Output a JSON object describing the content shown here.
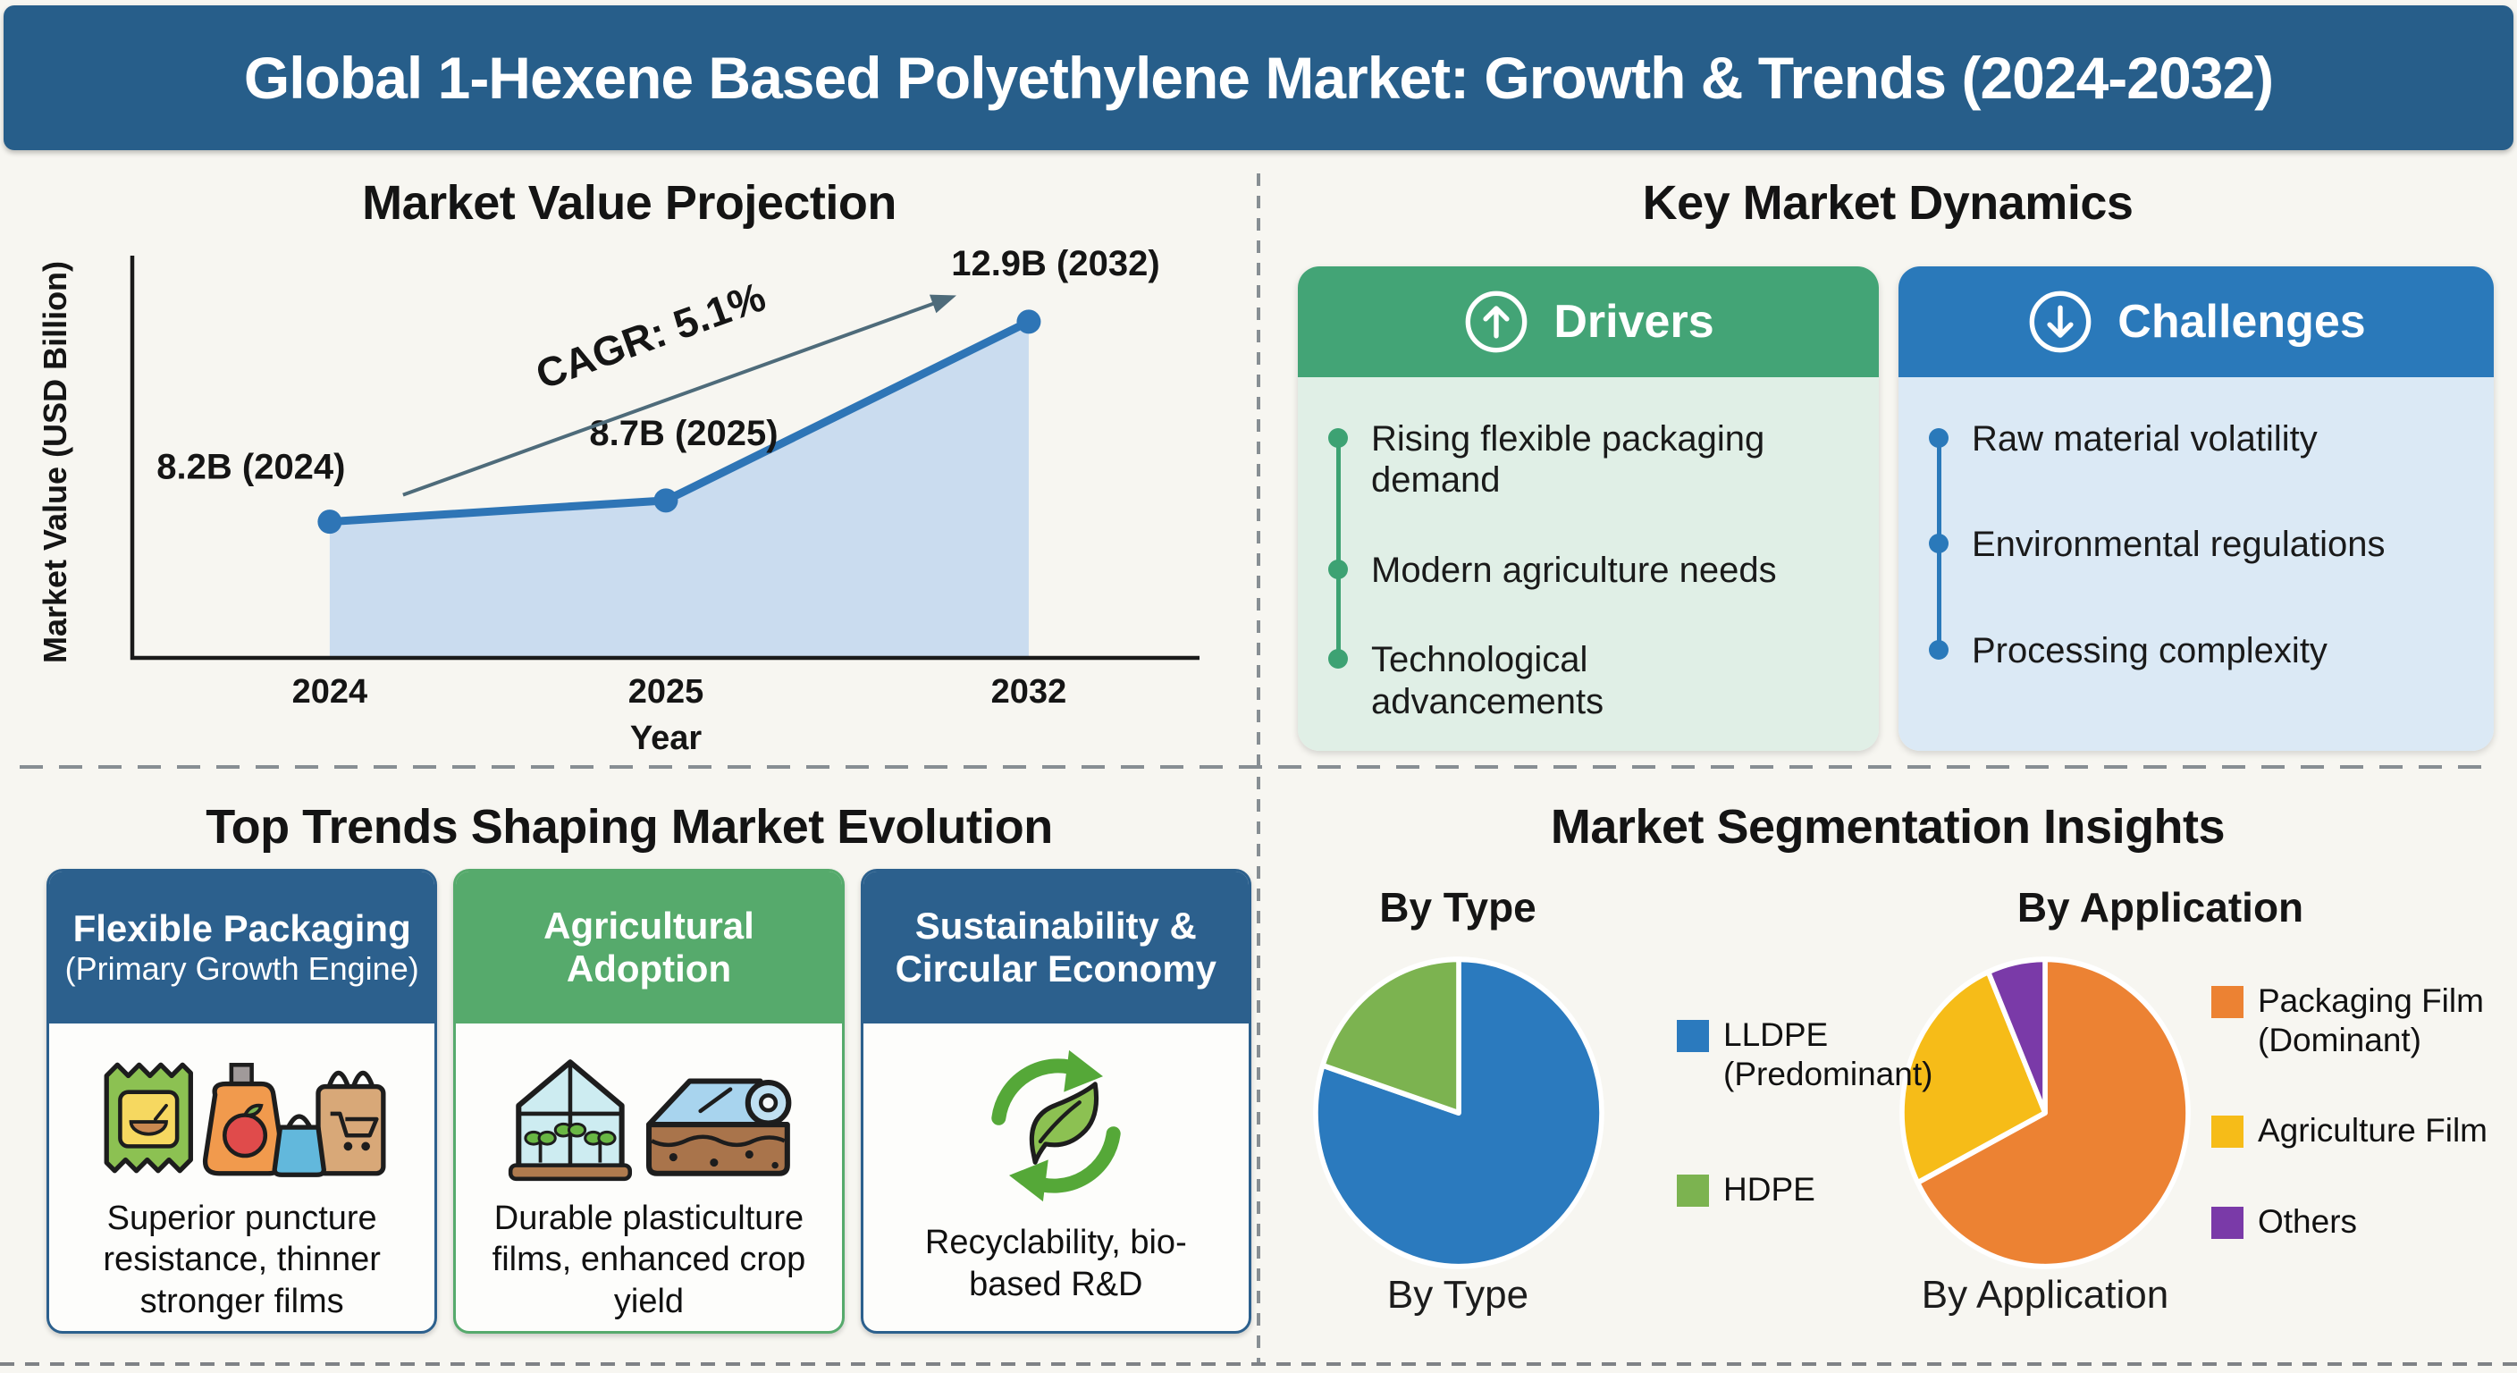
{
  "banner": {
    "title": "Global 1-Hexene Based Polyethylene Market: Growth & Trends (2024-2032)"
  },
  "market_value": {
    "title": "Market Value Projection"
  },
  "chart_data": [
    {
      "type": "line",
      "title": "Market Value Projection",
      "x": [
        "2024",
        "2025",
        "2032"
      ],
      "values": [
        8.2,
        8.7,
        12.9
      ],
      "point_labels": [
        "8.2B (2024)",
        "8.7B (2025)",
        "12.9B (2032)"
      ],
      "xlabel": "Year",
      "ylabel": "Market Value (USD Billion)",
      "annotation": "CAGR: 5.1%",
      "ylim": [
        5,
        14.2
      ],
      "grid": false,
      "legend_position": "none",
      "line_color": "#2e75b6",
      "fill_color": "#cadcef",
      "axis_color": "#1a1a1a",
      "arrow_color": "#4e6b7a"
    },
    {
      "type": "pie",
      "title": "By Type",
      "footer": "By Type",
      "labels": [
        "LLDPE (Predominant)",
        "HDPE"
      ],
      "values": [
        80,
        20
      ],
      "colors": [
        "#2b7abe",
        "#7cb350"
      ],
      "legend": [
        {
          "line1": "LLDPE",
          "line2": "(Predominant)"
        },
        {
          "line1": "HDPE",
          "line2": ""
        }
      ]
    },
    {
      "type": "pie",
      "title": "By Application",
      "footer": "By Application",
      "labels": [
        "Packaging Film (Dominant)",
        "Agriculture Film",
        "Others"
      ],
      "values": [
        67.5,
        26,
        6.5
      ],
      "colors": [
        "#ec8233",
        "#f6bc18",
        "#7a3aa8"
      ],
      "legend": [
        {
          "line1": "Packaging Film",
          "line2": "(Dominant)"
        },
        {
          "line1": "Agriculture Film",
          "line2": ""
        },
        {
          "line1": "Others",
          "line2": ""
        }
      ]
    }
  ],
  "dynamics": {
    "title": "Key Market Dynamics",
    "drivers": {
      "title": "Drivers",
      "header_color": "#43a476",
      "body_color": "#e0efe6",
      "accent": "#3da273",
      "items": [
        "Rising flexible packaging demand",
        "Modern agriculture needs",
        "Technological advancements"
      ]
    },
    "challenges": {
      "title": "Challenges",
      "header_color": "#2a79ba",
      "body_color": "#dbe9f5",
      "accent": "#2a79ba",
      "items": [
        "Raw material volatility",
        "Environmental regulations",
        "Processing complexity"
      ]
    }
  },
  "trends": {
    "title": "Top Trends Shaping Market Evolution",
    "cards": [
      {
        "header_line1": "Flexible Packaging",
        "header_line2": "(Primary Growth Engine)",
        "header_color": "#2c608d",
        "body": "Superior puncture resistance, thinner stronger films"
      },
      {
        "header_line1": "Agricultural",
        "header_line2": "Adoption",
        "header_color": "#56aa6c",
        "body": "Durable plasticulture films, enhanced crop yield"
      },
      {
        "header_line1": "Sustainability &",
        "header_line2": "Circular Economy",
        "header_color": "#2c608d",
        "body": "Recyclability, bio-based R&D"
      }
    ]
  },
  "segmentation": {
    "title": "Market Segmentation Insights",
    "left_heading": "By Type",
    "right_heading": "By Application",
    "left_footer": "By Type",
    "right_footer": "By Application"
  }
}
